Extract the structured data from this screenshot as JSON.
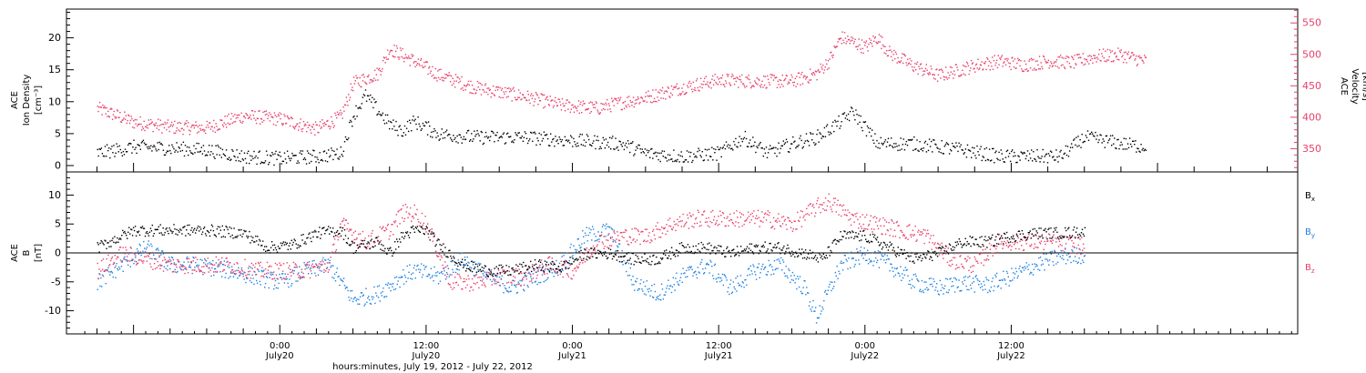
{
  "chart_data": [
    {
      "type": "scatter",
      "panel": "top",
      "ylabel_left": [
        "ACE",
        "Ion Density",
        "[cm⁻³]"
      ],
      "ylabel_right": [
        "ACE",
        "Velocity",
        "[km/s]"
      ],
      "ylim_left": [
        -1,
        24.5
      ],
      "ylim_right": [
        313,
        572
      ],
      "yticks_left": [
        "0",
        "5",
        "10",
        "15",
        "20"
      ],
      "yticks_right": [
        "350",
        "400",
        "450",
        "500",
        "550"
      ],
      "series": [
        {
          "color": "#000000",
          "axis": "left",
          "points": [
            [
              -15,
              2
            ],
            [
              -12,
              3
            ],
            [
              -9,
              2.8
            ],
            [
              -6,
              2.5
            ],
            [
              -3,
              1.5
            ],
            [
              0,
              1.2
            ],
            [
              3,
              1.5
            ],
            [
              5,
              2.0
            ],
            [
              6,
              8.0
            ],
            [
              7,
              11
            ],
            [
              9,
              6.5
            ],
            [
              10,
              5.5
            ],
            [
              11,
              7.0
            ],
            [
              13,
              5.0
            ],
            [
              16,
              4.5
            ],
            [
              20,
              4.5
            ],
            [
              24,
              4.0
            ],
            [
              28,
              3.5
            ],
            [
              30,
              2.0
            ],
            [
              33,
              1.5
            ],
            [
              36,
              2.0
            ],
            [
              38,
              4.5
            ],
            [
              40,
              2.0
            ],
            [
              42,
              3.5
            ],
            [
              44,
              4.5
            ],
            [
              46,
              7.0
            ],
            [
              47,
              8.5
            ],
            [
              49,
              3.5
            ],
            [
              52,
              3.5
            ],
            [
              56,
              2.5
            ],
            [
              59,
              1.5
            ],
            [
              62,
              1.5
            ],
            [
              64,
              1.5
            ],
            [
              66,
              4.5
            ],
            [
              69,
              3.5
            ],
            [
              71,
              3.0
            ]
          ]
        },
        {
          "color": "#e8406a",
          "axis": "right",
          "points": [
            [
              -15,
              415
            ],
            [
              -12,
              393
            ],
            [
              -9,
              385
            ],
            [
              -6,
              384
            ],
            [
              -3,
              403
            ],
            [
              0,
              398
            ],
            [
              3,
              382
            ],
            [
              5,
              402
            ],
            [
              6,
              455
            ],
            [
              8,
              470
            ],
            [
              9,
              510
            ],
            [
              11,
              490
            ],
            [
              13,
              468
            ],
            [
              16,
              448
            ],
            [
              20,
              434
            ],
            [
              23,
              420
            ],
            [
              26,
              415
            ],
            [
              27,
              420
            ],
            [
              30,
              432
            ],
            [
              33,
              448
            ],
            [
              36,
              460
            ],
            [
              39,
              458
            ],
            [
              42,
              458
            ],
            [
              44,
              470
            ],
            [
              45,
              490
            ],
            [
              46,
              528
            ],
            [
              48,
              512
            ],
            [
              49,
              528
            ],
            [
              50,
              503
            ],
            [
              52,
              482
            ],
            [
              54,
              467
            ],
            [
              57,
              483
            ],
            [
              59,
              490
            ],
            [
              61,
              484
            ],
            [
              63,
              490
            ],
            [
              65,
              488
            ],
            [
              67,
              498
            ],
            [
              69,
              500
            ],
            [
              71,
              490
            ]
          ]
        }
      ]
    },
    {
      "type": "scatter",
      "panel": "bottom",
      "ylabel_left": [
        "ACE",
        "B",
        "[nT]"
      ],
      "ylim": [
        -14,
        14
      ],
      "yticks": [
        "-10",
        "-5",
        "0",
        "5",
        "10"
      ],
      "xlabel": "hours:minutes, July 19, 2012 - July 22, 2012",
      "xlim": [
        -17.5,
        83.5
      ],
      "xticks": [
        {
          "t": 0,
          "label": "0:00",
          "sub": "July20"
        },
        {
          "t": 12,
          "label": "12:00",
          "sub": "July20"
        },
        {
          "t": 24,
          "label": "0:00",
          "sub": "July21"
        },
        {
          "t": 36,
          "label": "12:00",
          "sub": "July21"
        },
        {
          "t": 48,
          "label": "0:00",
          "sub": "July22"
        },
        {
          "t": 60,
          "label": "12:00",
          "sub": "July22"
        }
      ],
      "legend": [
        {
          "label": "B",
          "sub": "x",
          "color": "#000000"
        },
        {
          "label": "B",
          "sub": "y",
          "color": "#1e80e0"
        },
        {
          "label": "B",
          "sub": "z",
          "color": "#e8406a"
        }
      ],
      "series": [
        {
          "name": "Bx",
          "color": "#000000",
          "points": [
            [
              -15,
              1
            ],
            [
              -12,
              4
            ],
            [
              -9,
              4
            ],
            [
              -6,
              4
            ],
            [
              -3,
              3.5
            ],
            [
              -1,
              1
            ],
            [
              1,
              1.5
            ],
            [
              3,
              3.5
            ],
            [
              5,
              4
            ],
            [
              6,
              1
            ],
            [
              8,
              2
            ],
            [
              9,
              0
            ],
            [
              10,
              3
            ],
            [
              11,
              4
            ],
            [
              12,
              4
            ],
            [
              13,
              1.5
            ],
            [
              15,
              -2
            ],
            [
              17,
              -3
            ],
            [
              19,
              -3
            ],
            [
              21,
              -2
            ],
            [
              23,
              -2.5
            ],
            [
              25,
              0
            ],
            [
              27,
              0
            ],
            [
              29,
              -1
            ],
            [
              31,
              -1
            ],
            [
              33,
              1
            ],
            [
              35,
              1
            ],
            [
              37,
              0
            ],
            [
              39,
              1
            ],
            [
              41,
              1
            ],
            [
              43,
              0
            ],
            [
              44.5,
              -1
            ],
            [
              46,
              3
            ],
            [
              48,
              3
            ],
            [
              50,
              1
            ],
            [
              52,
              -1
            ],
            [
              54,
              0
            ],
            [
              56,
              2
            ],
            [
              58,
              2
            ],
            [
              60,
              3
            ],
            [
              62,
              3.5
            ],
            [
              64,
              3.5
            ],
            [
              66,
              3.8
            ]
          ]
        },
        {
          "name": "By",
          "color": "#1e80e0",
          "points": [
            [
              -15,
              -5
            ],
            [
              -13,
              -2
            ],
            [
              -11,
              1
            ],
            [
              -9,
              -2
            ],
            [
              -7,
              -2
            ],
            [
              -4,
              -3
            ],
            [
              -2,
              -4
            ],
            [
              0,
              -5
            ],
            [
              2,
              -3
            ],
            [
              4,
              -2
            ],
            [
              5,
              -5
            ],
            [
              6,
              -8
            ],
            [
              8,
              -7
            ],
            [
              10,
              -4
            ],
            [
              11,
              -3
            ],
            [
              13,
              -4
            ],
            [
              15,
              -1
            ],
            [
              17,
              -4
            ],
            [
              19,
              -6
            ],
            [
              21,
              -4
            ],
            [
              23,
              -2
            ],
            [
              25,
              3
            ],
            [
              27,
              4
            ],
            [
              29,
              -5
            ],
            [
              31,
              -7
            ],
            [
              33,
              -4
            ],
            [
              35,
              -2
            ],
            [
              37,
              -6
            ],
            [
              39,
              -3
            ],
            [
              41,
              -2
            ],
            [
              43,
              -6
            ],
            [
              44,
              -11
            ],
            [
              46,
              -2
            ],
            [
              48,
              0
            ],
            [
              50,
              -2
            ],
            [
              52,
              -5
            ],
            [
              54,
              -6
            ],
            [
              56,
              -5
            ],
            [
              58,
              -5.5
            ],
            [
              60,
              -4
            ],
            [
              62,
              -2
            ],
            [
              64,
              -0.5
            ],
            [
              66,
              -0.2
            ]
          ]
        },
        {
          "name": "Bz",
          "color": "#e8406a",
          "points": [
            [
              -15,
              -3
            ],
            [
              -13,
              0
            ],
            [
              -11,
              -1
            ],
            [
              -9,
              -2
            ],
            [
              -7,
              -2
            ],
            [
              -4,
              -2
            ],
            [
              -2,
              -3
            ],
            [
              0,
              -3
            ],
            [
              2,
              -3
            ],
            [
              4,
              -2
            ],
            [
              5,
              5
            ],
            [
              7,
              2
            ],
            [
              9,
              4
            ],
            [
              10,
              7
            ],
            [
              11,
              7
            ],
            [
              12,
              5
            ],
            [
              14,
              -5
            ],
            [
              16,
              -5
            ],
            [
              18,
              -4
            ],
            [
              20,
              -4
            ],
            [
              22,
              -2
            ],
            [
              24,
              -3
            ],
            [
              26,
              2
            ],
            [
              28,
              3
            ],
            [
              30,
              3
            ],
            [
              32,
              5
            ],
            [
              34,
              6
            ],
            [
              36,
              6
            ],
            [
              38,
              6
            ],
            [
              40,
              6
            ],
            [
              42,
              5
            ],
            [
              44,
              8
            ],
            [
              45,
              9
            ],
            [
              47,
              6
            ],
            [
              49,
              5
            ],
            [
              51,
              4
            ],
            [
              53,
              3
            ],
            [
              55,
              -1
            ],
            [
              57,
              -2
            ],
            [
              59,
              2
            ],
            [
              61,
              2
            ],
            [
              63,
              2
            ],
            [
              65,
              1.5
            ],
            [
              66,
              1.2
            ]
          ]
        }
      ]
    }
  ]
}
